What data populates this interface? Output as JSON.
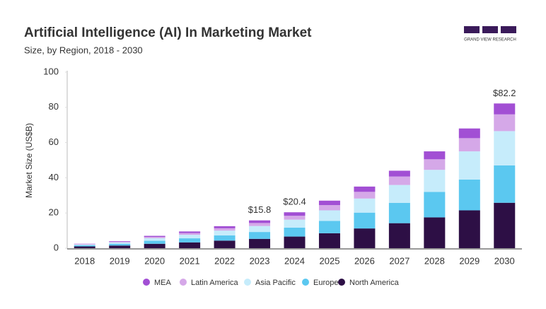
{
  "brand": "GRAND VIEW RESEARCH",
  "chart_data": {
    "type": "stacked-bar",
    "title": "Artificial Intelligence (AI) In Marketing Market",
    "subtitle": "Size, by Region, 2018 - 2030",
    "y_label": "Market Size (US$B)",
    "categories": [
      "2018",
      "2019",
      "2020",
      "2021",
      "2022",
      "2023",
      "2024",
      "2025",
      "2026",
      "2027",
      "2028",
      "2029",
      "2030"
    ],
    "series": [
      {
        "name": "MEA",
        "color": "#a24fd4",
        "values": [
          0.2,
          0.3,
          0.6,
          0.9,
          1.2,
          1.5,
          2.0,
          2.5,
          3.0,
          3.3,
          4.5,
          5.5,
          6.2
        ]
      },
      {
        "name": "Latin America",
        "color": "#d5a8e8",
        "values": [
          0.2,
          0.4,
          0.7,
          1.0,
          1.3,
          1.7,
          2.2,
          3.0,
          3.8,
          4.8,
          6.0,
          7.5,
          9.5
        ]
      },
      {
        "name": "Asia Pacific",
        "color": "#c6ecfb",
        "values": [
          0.5,
          0.8,
          1.5,
          2.0,
          2.7,
          3.4,
          4.5,
          6.0,
          8.0,
          10.2,
          12.5,
          16.0,
          19.5
        ]
      },
      {
        "name": "Europe",
        "color": "#5bc8f0",
        "values": [
          0.6,
          1.0,
          1.7,
          2.3,
          3.0,
          3.9,
          5.1,
          7.0,
          9.0,
          11.5,
          14.5,
          17.5,
          21.2
        ]
      },
      {
        "name": "North America",
        "color": "#2d0f45",
        "values": [
          1.0,
          1.5,
          2.5,
          3.3,
          4.3,
          5.3,
          6.6,
          8.5,
          11.2,
          14.2,
          17.5,
          21.5,
          25.8
        ]
      }
    ],
    "total_labels": [
      null,
      null,
      null,
      null,
      null,
      "$15.8",
      "$20.4",
      null,
      null,
      null,
      null,
      null,
      "$82.2"
    ],
    "ylim": [
      0,
      100
    ],
    "yticks": [
      0,
      20,
      40,
      60,
      80,
      100
    ],
    "grid": false
  }
}
